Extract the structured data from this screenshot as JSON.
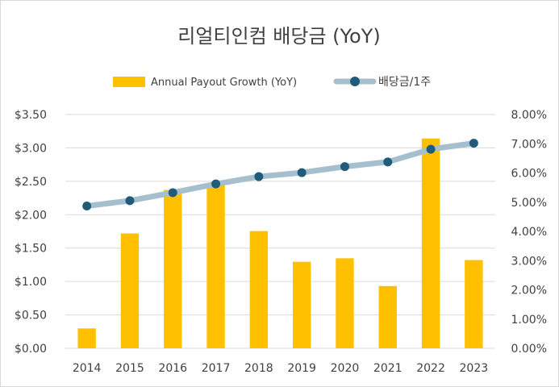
{
  "chart_data": {
    "type": "bar",
    "title": "리얼티인컴 배당금 (YoY)",
    "categories": [
      "2014",
      "2015",
      "2016",
      "2017",
      "2018",
      "2019",
      "2020",
      "2021",
      "2022",
      "2023"
    ],
    "series": [
      {
        "name": "Annual Payout Growth (YoY)",
        "type": "bar",
        "axis": "right",
        "color": "#FFC000",
        "values": [
          0.68,
          3.93,
          5.42,
          5.59,
          4.01,
          2.96,
          3.08,
          2.13,
          7.18,
          3.02
        ]
      },
      {
        "name": "배당금/1주",
        "type": "line",
        "axis": "left",
        "line_color": "#A6BFCF",
        "marker_color": "#1F5C7A",
        "values": [
          2.13,
          2.21,
          2.33,
          2.46,
          2.57,
          2.63,
          2.72,
          2.79,
          2.98,
          3.07
        ]
      }
    ],
    "y_left": {
      "min": 0,
      "max": 3.5,
      "ticks": [
        "$0.00",
        "$0.50",
        "$1.00",
        "$1.50",
        "$2.00",
        "$2.50",
        "$3.00",
        "$3.50"
      ]
    },
    "y_right": {
      "min": 0,
      "max": 8,
      "ticks": [
        "0.00%",
        "1.00%",
        "2.00%",
        "3.00%",
        "4.00%",
        "5.00%",
        "6.00%",
        "7.00%",
        "8.00%"
      ]
    },
    "grid": true,
    "legend_position": "top"
  }
}
